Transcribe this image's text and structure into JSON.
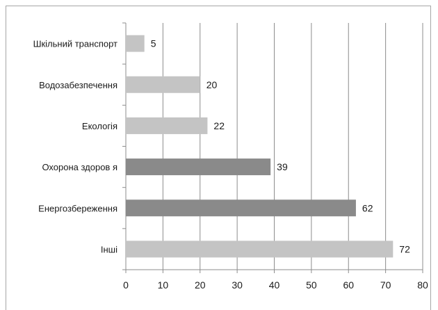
{
  "chart_data": {
    "type": "bar",
    "orientation": "horizontal",
    "categories": [
      "Шкільний транспорт",
      "Водозабезпечення",
      "Екологія",
      "Охорона здоров я",
      "Енергозбереження",
      "Інші"
    ],
    "values": [
      5,
      20,
      22,
      39,
      62,
      72
    ],
    "value_labels": [
      "5",
      "20",
      "22",
      "39",
      "62",
      "72"
    ],
    "xlim": [
      0,
      80
    ],
    "x_ticks": [
      0,
      10,
      20,
      30,
      40,
      50,
      60,
      70,
      80
    ],
    "x_tick_labels": [
      "0",
      "10",
      "20",
      "30",
      "40",
      "50",
      "60",
      "70",
      "80"
    ],
    "grid": "vertical",
    "legend": "none",
    "colors": [
      "#c4c4c4",
      "#c4c4c4",
      "#c4c4c4",
      "#8a8a8a",
      "#8a8a8a",
      "#c4c4c4"
    ]
  }
}
